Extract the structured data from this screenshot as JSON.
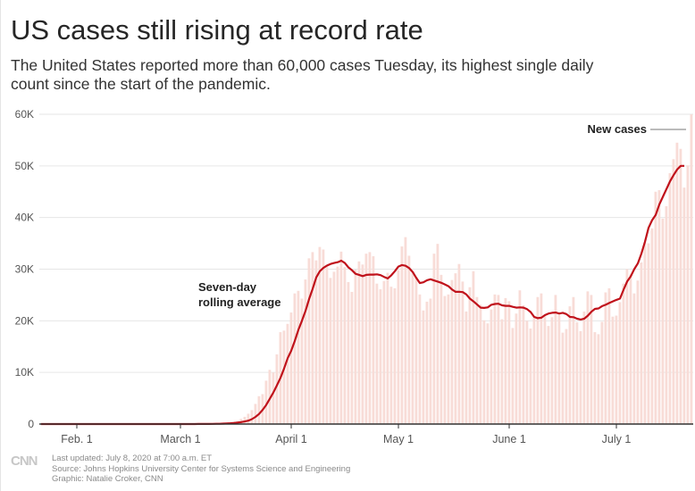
{
  "header": {
    "title": "US cases still rising at record rate",
    "subtitle": "The United States reported more than 60,000 cases Tuesday, its highest single daily count since the start of the pandemic."
  },
  "footer": {
    "logo": "CNN",
    "updated": "Last updated: July 8, 2020 at 7:00 a.m. ET",
    "source": "Source: Johns Hopkins University Center for Systems Science and Engineering",
    "graphic": "Graphic: Natalie Croker, CNN"
  },
  "colors": {
    "bar": "#f8dcd7",
    "line": "#c0121b",
    "axis": "#333333",
    "grid": "#e6e6e6",
    "text": "#555555"
  },
  "chart_data": {
    "type": "bar",
    "start_date": "2020-01-22",
    "ylim": [
      0,
      60000
    ],
    "yticks": [
      0,
      10000,
      20000,
      30000,
      40000,
      50000,
      60000
    ],
    "ytick_labels": [
      "0",
      "10K",
      "20K",
      "30K",
      "40K",
      "50K",
      "60K"
    ],
    "xticks": [
      {
        "label": "Feb. 1",
        "date": "2020-02-01"
      },
      {
        "label": "March 1",
        "date": "2020-03-01"
      },
      {
        "label": "April 1",
        "date": "2020-04-01"
      },
      {
        "label": "May 1",
        "date": "2020-05-01"
      },
      {
        "label": "June 1",
        "date": "2020-06-01"
      },
      {
        "label": "July 1",
        "date": "2020-07-01"
      }
    ],
    "series": [
      {
        "name": "New cases",
        "type": "bar",
        "values": [
          0,
          0,
          1,
          1,
          0,
          2,
          0,
          0,
          0,
          0,
          1,
          0,
          0,
          3,
          0,
          0,
          0,
          0,
          0,
          1,
          0,
          0,
          0,
          0,
          0,
          0,
          0,
          0,
          0,
          0,
          0,
          3,
          0,
          0,
          0,
          1,
          0,
          4,
          2,
          3,
          4,
          7,
          15,
          10,
          20,
          25,
          30,
          60,
          90,
          110,
          70,
          200,
          300,
          400,
          500,
          600,
          1000,
          1400,
          2000,
          2700,
          3900,
          5400,
          5800,
          8400,
          10500,
          10000,
          13500,
          17800,
          18100,
          19400,
          21600,
          25300,
          25800,
          24300,
          28000,
          32100,
          33300,
          31700,
          34300,
          33800,
          30800,
          28300,
          29500,
          30500,
          33400,
          30400,
          27500,
          25600,
          29900,
          31500,
          30900,
          33000,
          33300,
          32500,
          27200,
          26100,
          27700,
          29300,
          26600,
          26300,
          29800,
          34400,
          36200,
          32600,
          29300,
          28500,
          25100,
          22000,
          23700,
          24300,
          33000,
          34900,
          28900,
          24800,
          25100,
          27900,
          29200,
          31000,
          27600,
          21800,
          26500,
          29600,
          24600,
          23100,
          20100,
          19500,
          22200,
          25100,
          25000,
          20300,
          24400,
          23800,
          18600,
          21400,
          25900,
          23000,
          20000,
          18500,
          20900,
          24600,
          25300,
          20900,
          19000,
          20700,
          25000,
          21500,
          17700,
          18400,
          22800,
          24600,
          19700,
          18000,
          21800,
          25700,
          25000,
          17800,
          17400,
          19800,
          25500,
          26300,
          20800,
          21000,
          23600,
          27200,
          30000,
          29000,
          25300,
          27800,
          31300,
          35100,
          35000,
          37900,
          45000,
          45300,
          39800,
          42200,
          48600,
          51300,
          54500,
          53300,
          45800,
          50100,
          60000
        ]
      },
      {
        "name": "Seven-day rolling average",
        "type": "line",
        "values": [
          0,
          0,
          0,
          0,
          0,
          0,
          1,
          1,
          0,
          0,
          0,
          0,
          0,
          0,
          0,
          0,
          0,
          0,
          0,
          0,
          0,
          0,
          0,
          0,
          0,
          0,
          0,
          0,
          0,
          0,
          0,
          0,
          0,
          0,
          0,
          0,
          1,
          1,
          1,
          1,
          2,
          3,
          5,
          6,
          9,
          12,
          16,
          22,
          34,
          48,
          58,
          85,
          120,
          160,
          210,
          270,
          380,
          500,
          650,
          950,
          1380,
          1950,
          2750,
          3700,
          4900,
          6100,
          7500,
          8950,
          10750,
          12750,
          14200,
          16100,
          18250,
          20000,
          21900,
          24200,
          26200,
          28400,
          29600,
          30250,
          30700,
          31000,
          31200,
          31350,
          31650,
          31200,
          30350,
          29800,
          29100,
          28900,
          28650,
          28900,
          28950,
          28950,
          29000,
          28850,
          28500,
          28200,
          28800,
          29600,
          30500,
          30800,
          30650,
          30200,
          29450,
          28300,
          27300,
          27450,
          27850,
          28050,
          27800,
          27600,
          27350,
          27050,
          26700,
          26050,
          25600,
          25600,
          25550,
          25100,
          24300,
          23750,
          23150,
          22550,
          22500,
          22600,
          23100,
          23250,
          23300,
          23000,
          22900,
          22900,
          22700,
          22550,
          22600,
          22550,
          22250,
          21700,
          20750,
          20500,
          20600,
          21100,
          21400,
          21550,
          21600,
          21400,
          21550,
          21300,
          20750,
          20700,
          20400,
          20250,
          20400,
          21000,
          21750,
          22300,
          22400,
          22850,
          23100,
          23450,
          23750,
          24050,
          24300,
          26000,
          27600,
          28600,
          30000,
          31100,
          33000,
          35300,
          38000,
          39500,
          40500,
          42500,
          44000,
          45500,
          47000,
          48200,
          49300,
          50000,
          50000
        ]
      }
    ],
    "annotations": [
      {
        "text_lines": [
          "New cases"
        ],
        "target": "bars"
      },
      {
        "text_lines": [
          "Seven-day",
          "rolling average"
        ],
        "target": "line"
      }
    ]
  }
}
